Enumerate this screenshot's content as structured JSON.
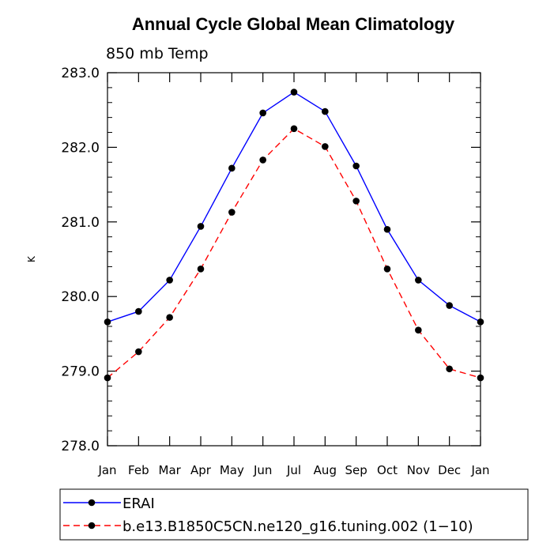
{
  "chart_data": {
    "type": "line",
    "title": "Annual Cycle Global Mean Climatology",
    "subtitle": "850 mb Temp",
    "xlabel": "",
    "ylabel": "K",
    "categories": [
      "Jan",
      "Feb",
      "Mar",
      "Apr",
      "May",
      "Jun",
      "Jul",
      "Aug",
      "Sep",
      "Oct",
      "Nov",
      "Dec",
      "Jan"
    ],
    "ylim": [
      278.0,
      283.0
    ],
    "yticks": [
      "278.0",
      "279.0",
      "280.0",
      "281.0",
      "282.0",
      "283.0"
    ],
    "grid": false,
    "legend_position": "bottom",
    "series": [
      {
        "name": "ERAI",
        "color": "#0000ff",
        "style": "solid",
        "marker": "circle",
        "values": [
          279.66,
          279.8,
          280.22,
          280.94,
          281.72,
          282.46,
          282.74,
          282.48,
          281.75,
          280.9,
          280.22,
          279.88,
          279.66
        ]
      },
      {
        "name": "b.e13.B1850C5CN.ne120_g16.tuning.002 (1−10)",
        "color": "#ff0000",
        "style": "dashed",
        "marker": "circle",
        "values": [
          278.91,
          279.26,
          279.72,
          280.37,
          281.13,
          281.83,
          282.25,
          282.01,
          281.28,
          280.37,
          279.55,
          279.03,
          278.91
        ]
      }
    ]
  }
}
